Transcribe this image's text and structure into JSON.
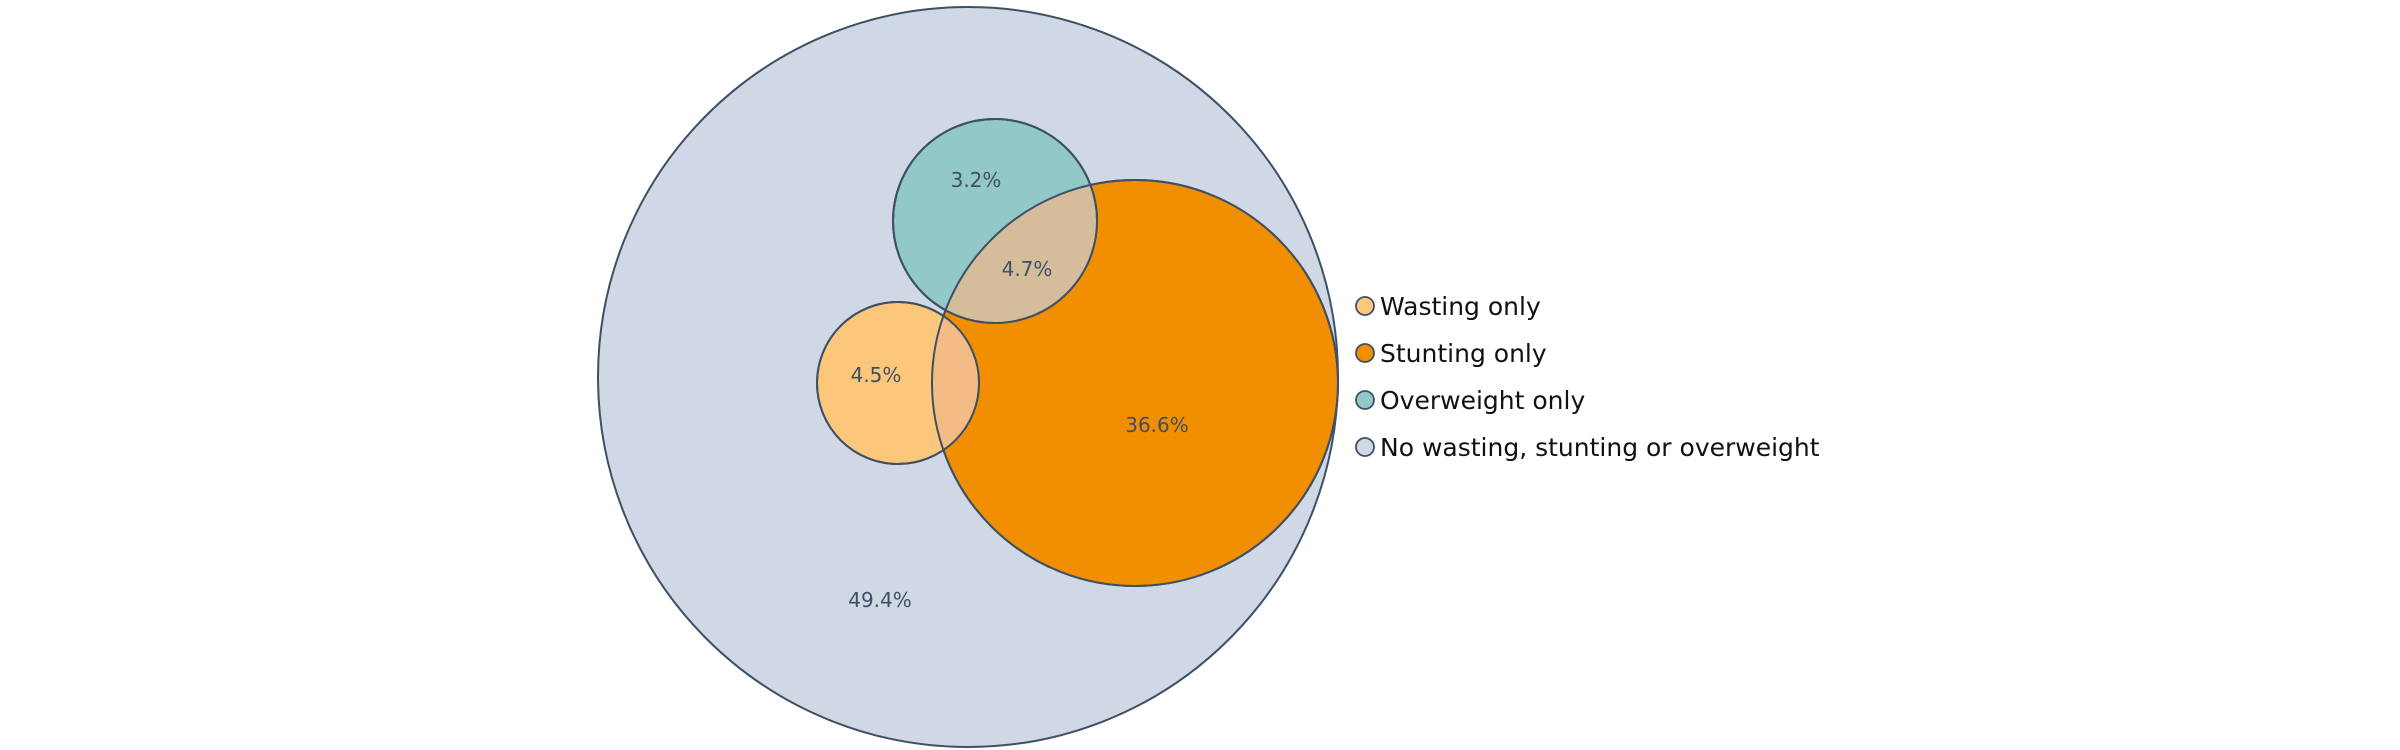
{
  "chart_data": {
    "type": "venn",
    "title": "",
    "sets": [
      {
        "name": "No wasting, stunting or overweight",
        "color": "#cfd8e4"
      },
      {
        "name": "Stunting only",
        "color": "#f28f00"
      },
      {
        "name": "Overweight only",
        "color": "#92c8c8"
      },
      {
        "name": "Wasting only",
        "color": "#fdc77b"
      }
    ],
    "intersection_colors": {
      "wasting_and_stunting": "#f2bc84",
      "overweight_and_stunting": "#d5bd9c"
    },
    "region_labels": [
      {
        "region": "none",
        "text": "49.4%",
        "value": 49.4
      },
      {
        "region": "stunting_only",
        "text": "36.6%",
        "value": 36.6
      },
      {
        "region": "overweight_and_stunting",
        "text": "4.7%",
        "value": 4.7
      },
      {
        "region": "wasting_only",
        "text": "4.5%",
        "value": 4.5
      },
      {
        "region": "overweight_only",
        "text": "3.2%",
        "value": 3.2
      }
    ],
    "legend": {
      "placement": "right",
      "entries": [
        {
          "label": "Wasting only",
          "color": "#fdc77b"
        },
        {
          "label": "Stunting only",
          "color": "#f28f00"
        },
        {
          "label": "Overweight only",
          "color": "#92c8c8"
        },
        {
          "label": "No wasting, stunting or overweight",
          "color": "#cfd8e4"
        }
      ]
    },
    "outline_color": "#3d5066"
  }
}
